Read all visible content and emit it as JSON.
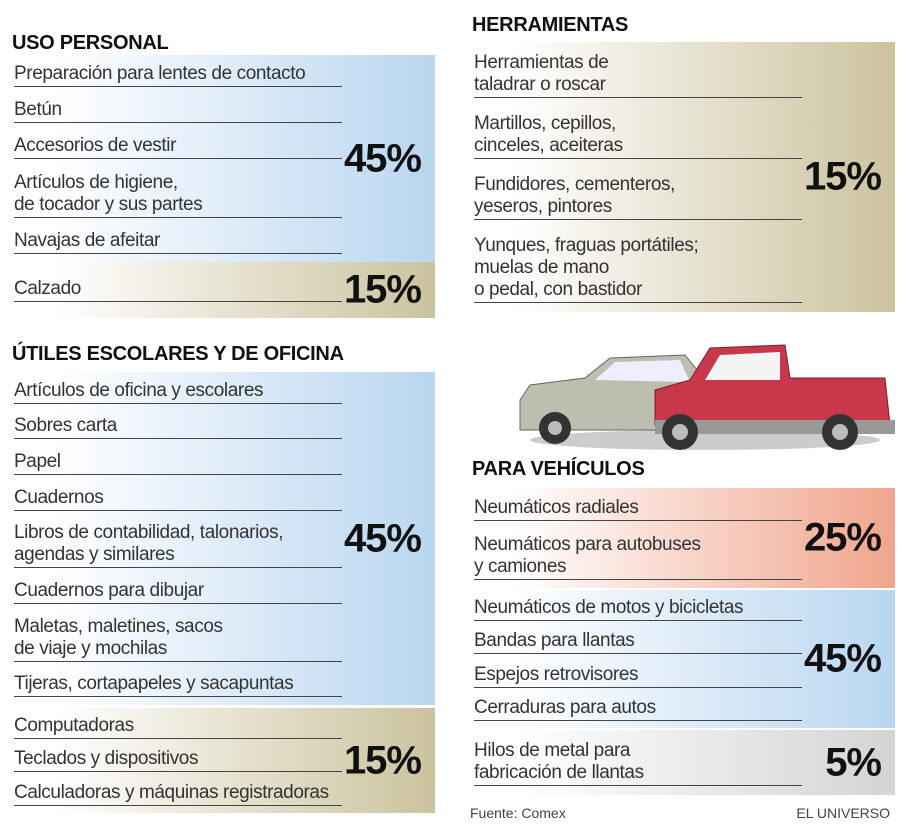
{
  "sections": [
    {
      "title": "USO PERSONAL",
      "groups": [
        {
          "items": [
            "Preparación para lentes de contacto",
            "Betún",
            "Accesorios de vestir",
            "Artículos de higiene,\nde tocador y sus partes",
            "Navajas de afeitar"
          ],
          "percent": "45%"
        },
        {
          "items": [
            "Calzado"
          ],
          "percent": "15%"
        }
      ]
    },
    {
      "title": "ÚTILES ESCOLARES Y DE OFICINA",
      "groups": [
        {
          "items": [
            "Artículos de oficina y escolares",
            "Sobres carta",
            "Papel",
            "Cuadernos",
            "Libros de contabilidad, talonarios,\nagendas y similares",
            "Cuadernos para dibujar",
            "Maletas, maletines, sacos\nde viaje y mochilas",
            "Tijeras, cortapapeles y sacapuntas"
          ],
          "percent": "45%"
        },
        {
          "items": [
            "Computadoras",
            "Teclados y dispositivos",
            "Calculadoras y máquinas registradoras"
          ],
          "percent": "15%"
        }
      ]
    },
    {
      "title": "HERRAMIENTAS",
      "groups": [
        {
          "items": [
            "Herramientas de\ntaladrar o roscar",
            "Martillos, cepillos,\ncinceles, aceiteras",
            "Fundidores, cementeros,\nyeseros, pintores",
            "Yunques, fraguas portátiles;\nmuelas de mano\no pedal, con bastidor"
          ],
          "percent": "15%"
        }
      ]
    },
    {
      "title": "PARA VEHÍCULOS",
      "groups": [
        {
          "items": [
            "Neumáticos radiales",
            "Neumáticos para autobuses\ny camiones"
          ],
          "percent": "25%"
        },
        {
          "items": [
            "Neumáticos de motos y bicicletas",
            "Bandas para llantas",
            "Espejos retrovisores",
            "Cerraduras para autos"
          ],
          "percent": "45%"
        },
        {
          "items": [
            "Hilos de metal para\nfabricación de llantas"
          ],
          "percent": "5%"
        }
      ]
    }
  ],
  "source": "Fuente: Comex",
  "brand": "EL UNIVERSO"
}
